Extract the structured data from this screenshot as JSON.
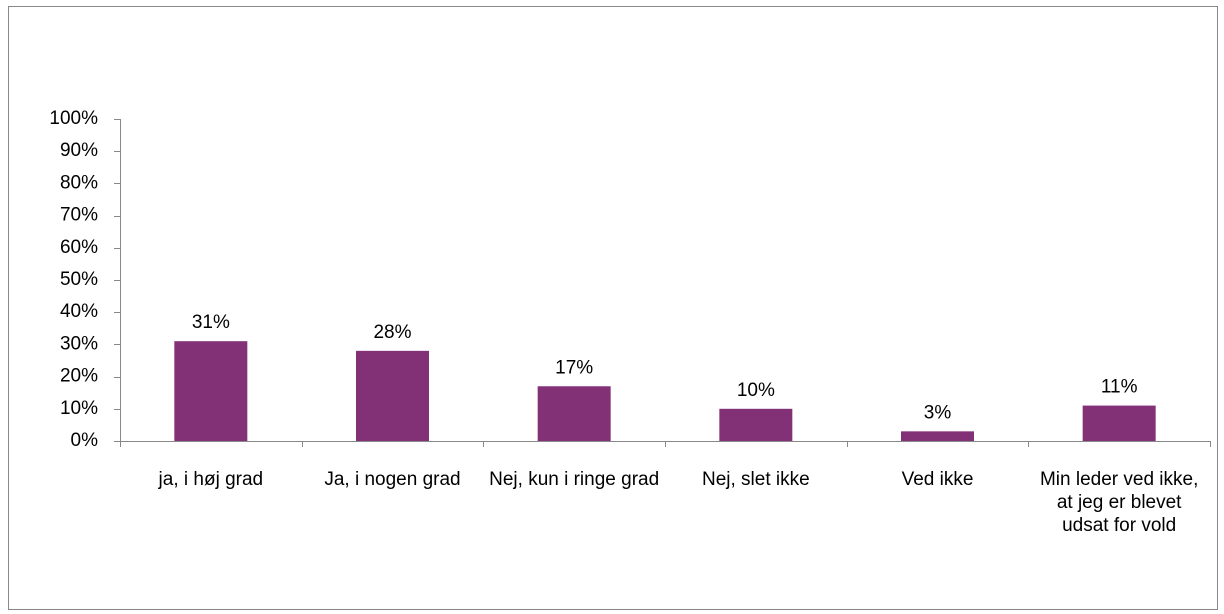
{
  "chart_data": {
    "type": "bar",
    "categories": [
      "ja, i høj grad",
      "Ja, i nogen grad",
      "Nej, kun i ringe grad",
      "Nej, slet ikke",
      "Ved ikke",
      "Min leder ved ikke, at jeg er blevet udsat for vold"
    ],
    "values": [
      31,
      28,
      17,
      10,
      3,
      11
    ],
    "value_labels": [
      "31%",
      "28%",
      "17%",
      "10%",
      "3%",
      "11%"
    ],
    "color": "#833177",
    "ylim": [
      0,
      100
    ],
    "yticks": [
      {
        "value": 0,
        "label": "0%"
      },
      {
        "value": 10,
        "label": "10%"
      },
      {
        "value": 20,
        "label": "20%"
      },
      {
        "value": 30,
        "label": "30%"
      },
      {
        "value": 40,
        "label": "40%"
      },
      {
        "value": 50,
        "label": "50%"
      },
      {
        "value": 60,
        "label": "60%"
      },
      {
        "value": 70,
        "label": "70%"
      },
      {
        "value": 80,
        "label": "80%"
      },
      {
        "value": 90,
        "label": "90%"
      },
      {
        "value": 100,
        "label": "100%"
      }
    ],
    "grid": false
  }
}
